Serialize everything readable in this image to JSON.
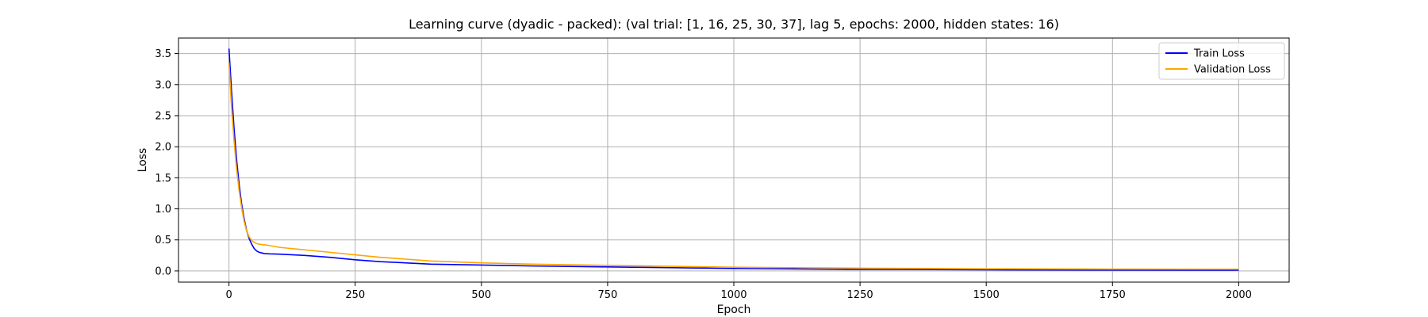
{
  "chart_data": {
    "type": "line",
    "title": "Learning curve (dyadic - packed): (val trial: [1, 16, 25, 30, 37], lag 5, epochs: 2000, hidden states: 16)",
    "xlabel": "Epoch",
    "ylabel": "Loss",
    "xlim": [
      -100,
      2100
    ],
    "ylim": [
      -0.18,
      3.75
    ],
    "xticks": [
      0,
      250,
      500,
      750,
      1000,
      1250,
      1500,
      1750,
      2000
    ],
    "yticks": [
      0.0,
      0.5,
      1.0,
      1.5,
      2.0,
      2.5,
      3.0,
      3.5
    ],
    "ytick_labels": [
      "0.0",
      "0.5",
      "1.0",
      "1.5",
      "2.0",
      "2.5",
      "3.0",
      "3.5"
    ],
    "grid": true,
    "legend_position": "top-right",
    "series": [
      {
        "name": "Train Loss",
        "color": "#0000ff",
        "x": [
          0,
          5,
          10,
          15,
          20,
          25,
          30,
          35,
          40,
          45,
          50,
          55,
          60,
          65,
          70,
          80,
          100,
          150,
          200,
          250,
          300,
          400,
          500,
          600,
          750,
          1000,
          1250,
          1500,
          1750,
          2000
        ],
        "y": [
          3.58,
          2.9,
          2.3,
          1.8,
          1.4,
          1.08,
          0.84,
          0.65,
          0.52,
          0.43,
          0.36,
          0.32,
          0.3,
          0.29,
          0.28,
          0.275,
          0.27,
          0.25,
          0.22,
          0.18,
          0.15,
          0.11,
          0.095,
          0.08,
          0.065,
          0.04,
          0.025,
          0.018,
          0.014,
          0.012
        ]
      },
      {
        "name": "Validation Loss",
        "color": "#ffa500",
        "x": [
          0,
          5,
          10,
          15,
          20,
          25,
          30,
          35,
          40,
          45,
          50,
          55,
          60,
          70,
          80,
          100,
          150,
          200,
          250,
          300,
          400,
          500,
          600,
          750,
          1000,
          1250,
          1500,
          1750,
          2000
        ],
        "y": [
          3.35,
          2.65,
          2.1,
          1.65,
          1.3,
          1.02,
          0.8,
          0.64,
          0.55,
          0.49,
          0.46,
          0.44,
          0.43,
          0.42,
          0.41,
          0.38,
          0.34,
          0.3,
          0.26,
          0.22,
          0.16,
          0.13,
          0.11,
          0.09,
          0.06,
          0.045,
          0.035,
          0.03,
          0.028
        ]
      }
    ]
  }
}
